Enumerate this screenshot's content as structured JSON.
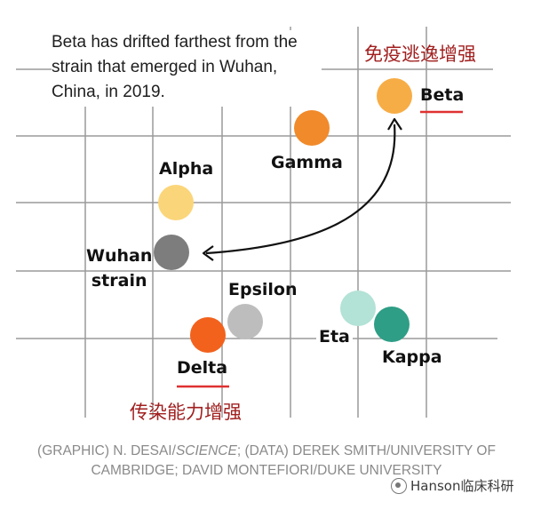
{
  "intro_text": "Beta has drifted farthest from the strain that emerged in Wuhan, China, in 2019.",
  "strains": {
    "beta": {
      "label": "Beta",
      "color": "#f7ad45"
    },
    "gamma": {
      "label": "Gamma",
      "color": "#f18a2a"
    },
    "alpha": {
      "label": "Alpha",
      "color": "#fbd57a"
    },
    "wuhan": {
      "label_line1": "Wuhan",
      "label_line2": "strain",
      "color": "#7d7d7d"
    },
    "epsilon": {
      "label": "Epsilon",
      "color": "#bdbdbd"
    },
    "delta": {
      "label": "Delta",
      "color": "#f2621d"
    },
    "eta": {
      "label": "Eta",
      "color": "#b3e2d6"
    },
    "kappa": {
      "label": "Kappa",
      "color": "#2e9e86"
    }
  },
  "annotations": {
    "immune_escape": "免疫逃逸增强",
    "transmissibility": "传染能力增强",
    "annotation_color": "#a11f1f",
    "underline_color": "#e03131"
  },
  "credit": {
    "part1": "(GRAPHIC) N. DESAI/",
    "italic": "SCIENCE",
    "part2": "; (DATA) DEREK SMITH/UNIVERSITY OF CAMBRIDGE; DAVID MONTEFIORI/DUKE UNIVERSITY"
  },
  "watermark": "Hanson临床科研"
}
